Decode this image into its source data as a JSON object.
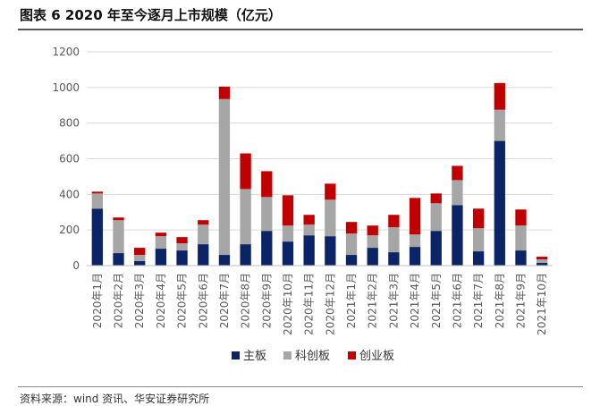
{
  "title": "图表 6 2020 年至今逐月上市规模（亿元）",
  "source": "资料来源：wind 资讯、华安证券研究所",
  "colors": {
    "main": "#0b2466",
    "star": "#a6a6a6",
    "chinext": "#c00000",
    "grid": "#d9d9d9",
    "axis": "#595959"
  },
  "chart_data": {
    "type": "bar",
    "stacked": true,
    "title": "",
    "xlabel": "",
    "ylabel": "",
    "ylim": [
      0,
      1200
    ],
    "yticks": [
      0,
      200,
      400,
      600,
      800,
      1000,
      1200
    ],
    "grid": true,
    "legend_position": "bottom-center",
    "categories": [
      "2020年1月",
      "2020年2月",
      "2020年3月",
      "2020年4月",
      "2020年5月",
      "2020年6月",
      "2020年7月",
      "2020年8月",
      "2020年9月",
      "2020年10月",
      "2020年11月",
      "2020年12月",
      "2021年1月",
      "2021年2月",
      "2021年3月",
      "2021年4月",
      "2021年5月",
      "2021年6月",
      "2021年7月",
      "2021年8月",
      "2021年9月",
      "2021年10月"
    ],
    "series": [
      {
        "name": "主板",
        "color": "#0b2466",
        "values": [
          320,
          70,
          25,
          95,
          85,
          120,
          60,
          120,
          195,
          135,
          170,
          165,
          60,
          100,
          75,
          105,
          195,
          340,
          80,
          700,
          85,
          15
        ]
      },
      {
        "name": "科创板",
        "color": "#a6a6a6",
        "values": [
          85,
          185,
          35,
          70,
          40,
          110,
          875,
          310,
          190,
          90,
          60,
          205,
          120,
          70,
          140,
          70,
          155,
          140,
          130,
          175,
          140,
          20
        ]
      },
      {
        "name": "创业板",
        "color": "#c00000",
        "values": [
          10,
          15,
          40,
          20,
          35,
          25,
          70,
          200,
          145,
          170,
          55,
          90,
          65,
          55,
          70,
          205,
          55,
          80,
          110,
          150,
          90,
          15
        ]
      }
    ]
  }
}
